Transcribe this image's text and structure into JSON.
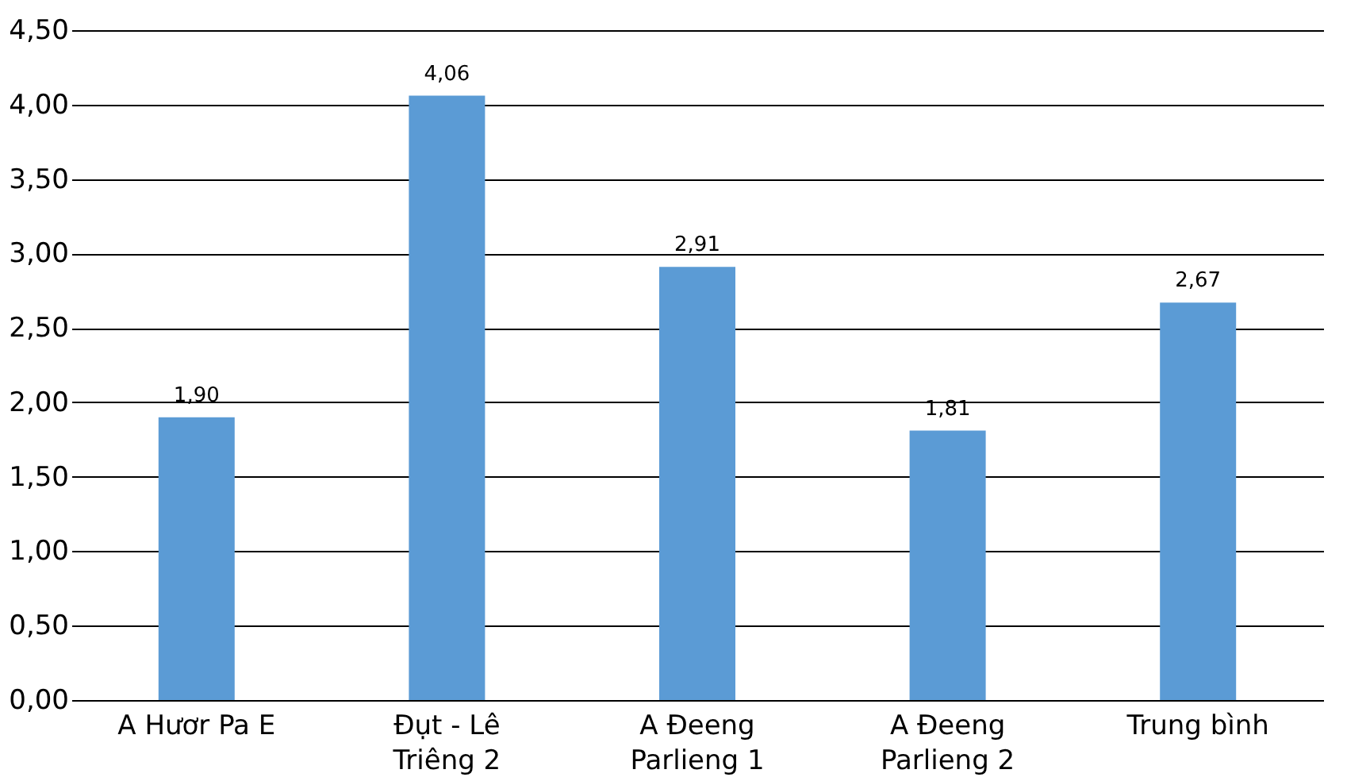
{
  "chart_data": {
    "type": "bar",
    "categories": [
      "A Hươr  Pa E",
      "Đụt - Lê Triêng 2",
      "A Đeeng Parlieng 1",
      "A Đeeng Parlieng 2",
      "Trung bình"
    ],
    "values": [
      1.9,
      4.06,
      2.91,
      1.81,
      2.67
    ],
    "value_labels": [
      "1,90",
      "4,06",
      "2,91",
      "1,81",
      "2,67"
    ],
    "color": "#5b9bd5",
    "ylim": [
      0,
      4.5
    ],
    "yticks": [
      {
        "value": 0,
        "label": "0,00"
      },
      {
        "value": 0.5,
        "label": "0,50"
      },
      {
        "value": 1,
        "label": "1,00"
      },
      {
        "value": 1.5,
        "label": "1,50"
      },
      {
        "value": 2,
        "label": "2,00"
      },
      {
        "value": 2.5,
        "label": "2,50"
      },
      {
        "value": 3,
        "label": "3,00"
      },
      {
        "value": 3.5,
        "label": "3,50"
      },
      {
        "value": 4,
        "label": "4,00"
      },
      {
        "value": 4.5,
        "label": "4,50"
      }
    ],
    "grid": "y"
  }
}
